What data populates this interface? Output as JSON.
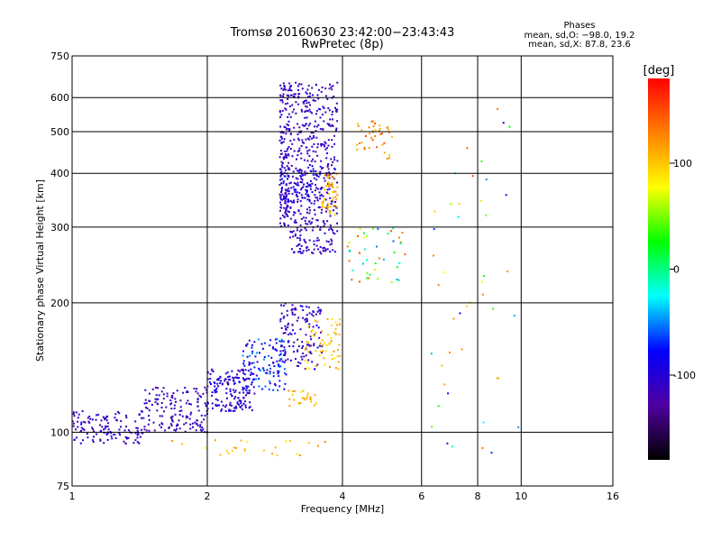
{
  "chart_data": {
    "type": "scatter",
    "title": "Tromsø 20160630 23:42:00−23:43:43",
    "subtitle": "RwPretec (8p)",
    "xlabel": "Frequency [MHz]",
    "ylabel": "Stationary phase Virtual Height [km]",
    "x_scale": "log",
    "y_scale": "log",
    "xlim": [
      1,
      16
    ],
    "ylim": [
      75,
      750
    ],
    "x_ticks": [
      1,
      2,
      4,
      6,
      8,
      10,
      16
    ],
    "y_ticks": [
      75,
      100,
      200,
      300,
      400,
      500,
      600,
      750
    ],
    "grid": true,
    "stats": {
      "title": "Phases",
      "line1": "mean, sd,O: −98.0, 19.2",
      "line2": "mean, sd,X:  87.8, 23.6"
    },
    "colorbar": {
      "label": "[deg]",
      "range": [
        -180,
        180
      ],
      "ticks": [
        100,
        0,
        -100
      ],
      "colors": [
        "#000000",
        "#5000a0",
        "#0000ff",
        "#00ffff",
        "#00ff00",
        "#ffff00",
        "#ff8000",
        "#ff0000"
      ]
    },
    "series": [
      {
        "components": [
          {
            "f": [
              1.0,
              1.45
            ],
            "h": [
              94,
              112
            ],
            "p": [
              -125,
              -95
            ],
            "n": 130
          },
          {
            "f": [
              1.45,
              2.0
            ],
            "h": [
              100,
              128
            ],
            "p": [
              -125,
              -95
            ],
            "n": 150
          },
          {
            "f": [
              2.0,
              2.55
            ],
            "h": [
              112,
              140
            ],
            "p": [
              -125,
              -80
            ],
            "n": 160
          },
          {
            "f": [
              2.4,
              3.0
            ],
            "h": [
              125,
              165
            ],
            "p": [
              -110,
              -45
            ],
            "n": 120
          },
          {
            "f": [
              2.9,
              3.6
            ],
            "h": [
              140,
              200
            ],
            "p": [
              -125,
              -90
            ],
            "n": 130
          },
          {
            "f": [
              3.3,
              3.95
            ],
            "h": [
              140,
              185
            ],
            "p": [
              80,
              125
            ],
            "n": 60
          },
          {
            "f": [
              3.0,
              3.5
            ],
            "h": [
              115,
              125
            ],
            "p": [
              90,
              120
            ],
            "n": 25
          },
          {
            "f": [
              2.9,
              3.05
            ],
            "h": [
              300,
              650
            ],
            "p": [
              -125,
              -95
            ],
            "n": 160
          },
          {
            "f": [
              3.05,
              3.9
            ],
            "h": [
              260,
              650
            ],
            "p": [
              -125,
              -95
            ],
            "n": 460
          },
          {
            "f": [
              2.9,
              3.6
            ],
            "h": [
              340,
              420
            ],
            "p": [
              -105,
              -70
            ],
            "n": 60
          },
          {
            "f": [
              3.6,
              3.9
            ],
            "h": [
              320,
              400
            ],
            "p": [
              90,
              125
            ],
            "n": 50
          },
          {
            "f": [
              4.3,
              5.2
            ],
            "h": [
              430,
              530
            ],
            "p": [
              95,
              150
            ],
            "n": 40
          },
          {
            "f": [
              4.1,
              5.6
            ],
            "h": [
              220,
              300
            ],
            "p": [
              -60,
              170
            ],
            "n": 45
          },
          {
            "f": [
              1.6,
              4.0
            ],
            "h": [
              88,
              96
            ],
            "p": [
              80,
              130
            ],
            "n": 25
          },
          {
            "f": [
              6.3,
              10.0
            ],
            "h": [
              80,
              640
            ],
            "p": [
              -120,
              160
            ],
            "n": 45
          }
        ]
      }
    ]
  }
}
